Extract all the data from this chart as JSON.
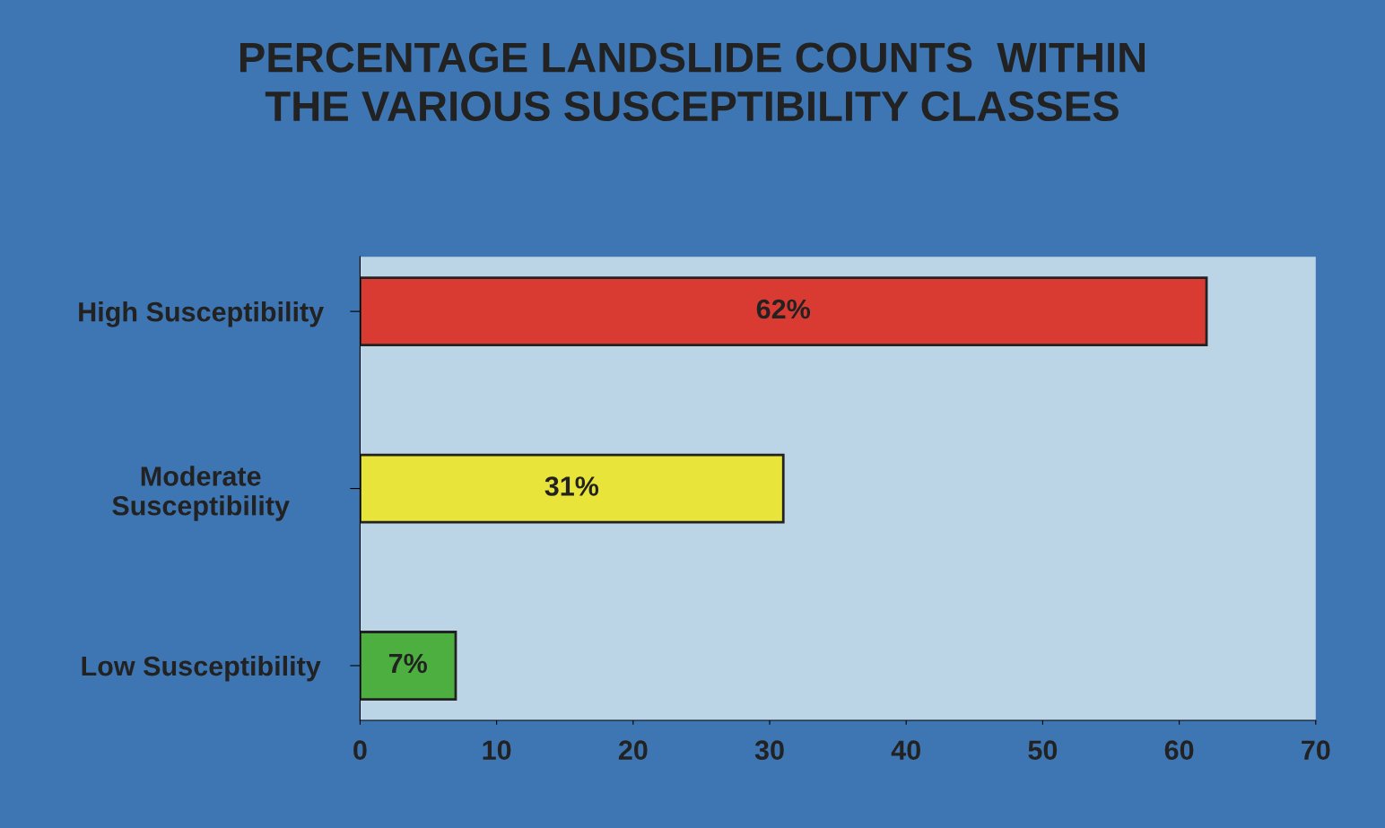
{
  "chart_data": {
    "type": "bar",
    "orientation": "horizontal",
    "title": "PERCENTAGE LANDSLIDE COUNTS  WITHIN\nTHE VARIOUS SUSCEPTIBILITY CLASSES",
    "categories": [
      "High Susceptibility",
      "Moderate\nSusceptibility",
      "Low Susceptibility"
    ],
    "values": [
      62,
      31,
      7
    ],
    "colors": [
      "#d93a32",
      "#e8e43a",
      "#4caf3f"
    ],
    "value_labels": [
      "62%",
      "31%",
      "7%"
    ],
    "xlim": [
      0,
      70
    ],
    "xticks": [
      0,
      10,
      20,
      30,
      40,
      50,
      60,
      70
    ],
    "grid": false,
    "legend": false
  }
}
